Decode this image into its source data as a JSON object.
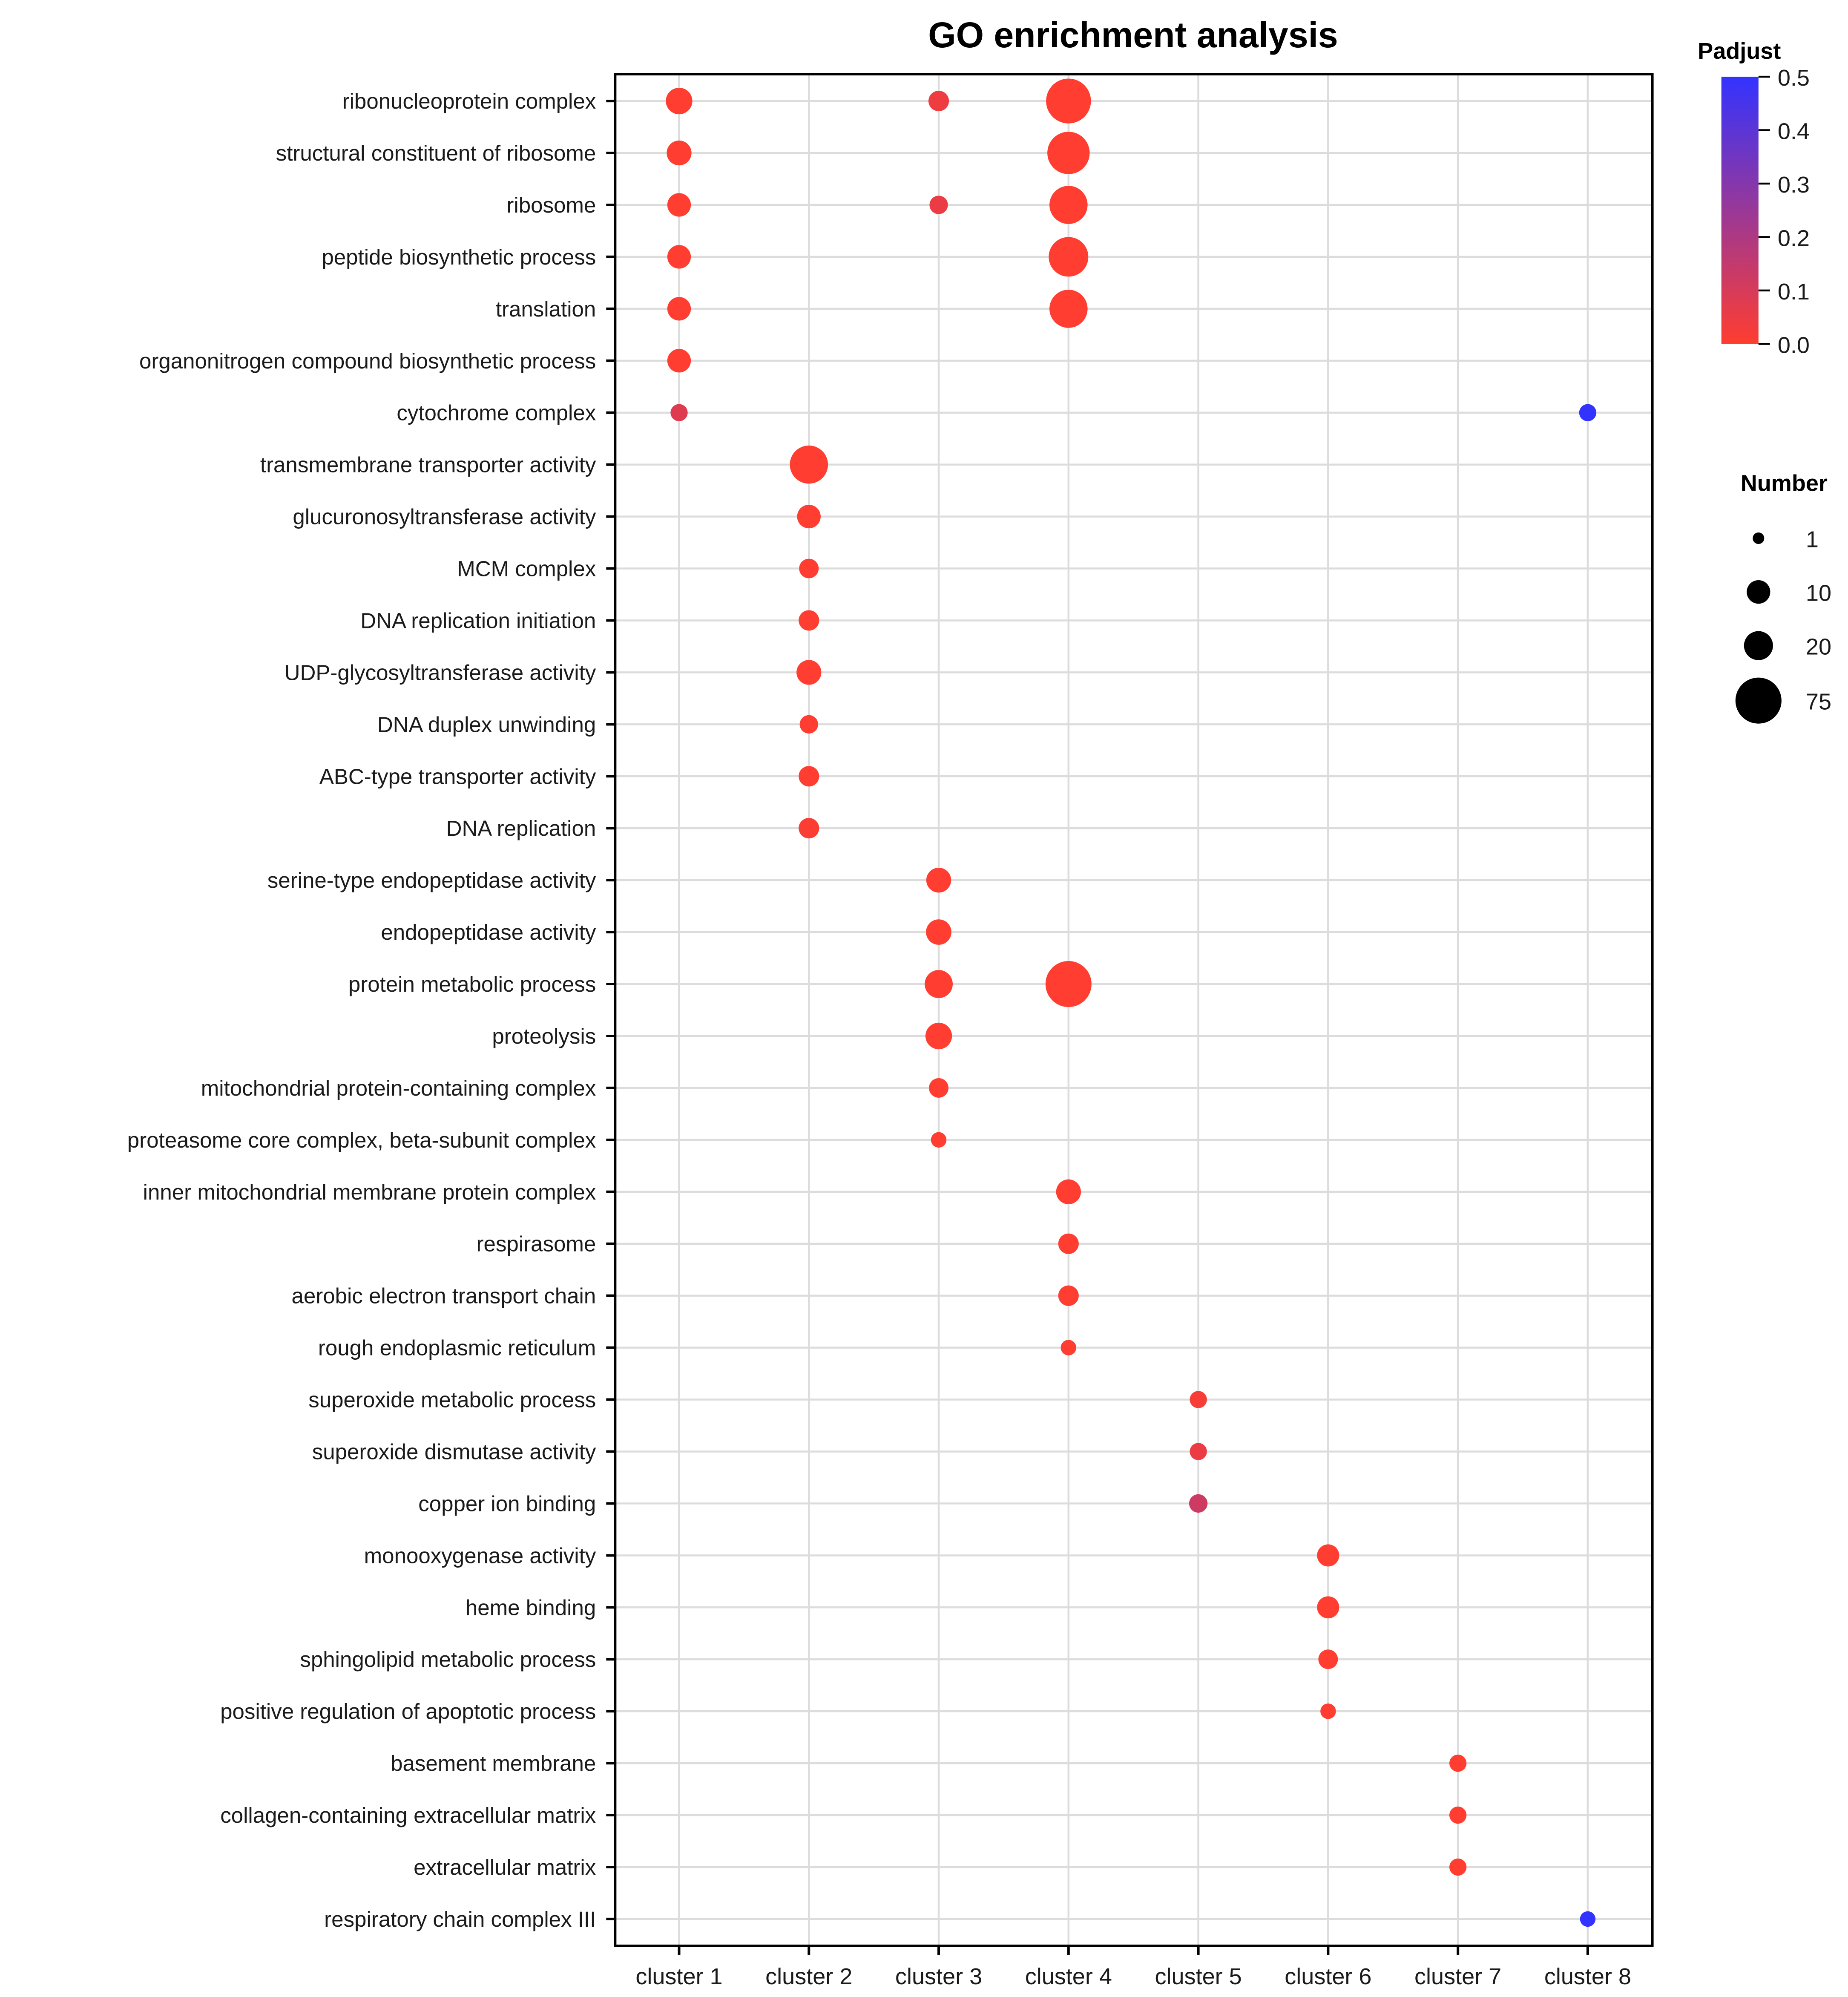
{
  "chart_data": {
    "type": "scatter",
    "title": "GO enrichment analysis",
    "xlabel": "",
    "ylabel": "",
    "grid": true,
    "categories_x": [
      "cluster 1",
      "cluster 2",
      "cluster 3",
      "cluster 4",
      "cluster 5",
      "cluster 6",
      "cluster 7",
      "cluster 8"
    ],
    "categories_y": [
      "ribonucleoprotein complex",
      "structural constituent of ribosome",
      "ribosome",
      "peptide biosynthetic process",
      "translation",
      "organonitrogen compound biosynthetic process",
      "cytochrome complex",
      "transmembrane transporter activity",
      "glucuronosyltransferase activity",
      "MCM complex",
      "DNA replication initiation",
      "UDP-glycosyltransferase activity",
      "DNA duplex unwinding",
      "ABC-type transporter activity",
      "DNA replication",
      "serine-type endopeptidase activity",
      "endopeptidase activity",
      "protein metabolic process",
      "proteolysis",
      "mitochondrial protein-containing complex",
      "proteasome core complex, beta-subunit complex",
      "inner mitochondrial membrane protein complex",
      "respirasome",
      "aerobic electron transport chain",
      "rough endoplasmic reticulum",
      "superoxide metabolic process",
      "superoxide dismutase activity",
      "copper ion binding",
      "monooxygenase activity",
      "heme binding",
      "sphingolipid metabolic process",
      "positive regulation of apoptotic process",
      "basement membrane",
      "collagen-containing extracellular matrix",
      "extracellular matrix",
      "respiratory chain complex III"
    ],
    "points": [
      {
        "term": "ribonucleoprotein complex",
        "cluster": "cluster 1",
        "number": 15,
        "padjust": 0.0
      },
      {
        "term": "ribonucleoprotein complex",
        "cluster": "cluster 3",
        "number": 6,
        "padjust": 0.04
      },
      {
        "term": "ribonucleoprotein complex",
        "cluster": "cluster 4",
        "number": 70,
        "padjust": 0.0
      },
      {
        "term": "structural constituent of ribosome",
        "cluster": "cluster 1",
        "number": 12,
        "padjust": 0.0
      },
      {
        "term": "structural constituent of ribosome",
        "cluster": "cluster 4",
        "number": 60,
        "padjust": 0.0
      },
      {
        "term": "ribosome",
        "cluster": "cluster 1",
        "number": 10,
        "padjust": 0.0
      },
      {
        "term": "ribosome",
        "cluster": "cluster 3",
        "number": 4,
        "padjust": 0.05
      },
      {
        "term": "ribosome",
        "cluster": "cluster 4",
        "number": 45,
        "padjust": 0.0
      },
      {
        "term": "peptide biosynthetic process",
        "cluster": "cluster 1",
        "number": 10,
        "padjust": 0.0
      },
      {
        "term": "peptide biosynthetic process",
        "cluster": "cluster 4",
        "number": 50,
        "padjust": 0.0
      },
      {
        "term": "translation",
        "cluster": "cluster 1",
        "number": 10,
        "padjust": 0.0
      },
      {
        "term": "translation",
        "cluster": "cluster 4",
        "number": 45,
        "padjust": 0.0
      },
      {
        "term": "organonitrogen compound biosynthetic process",
        "cluster": "cluster 1",
        "number": 10,
        "padjust": 0.0
      },
      {
        "term": "cytochrome complex",
        "cluster": "cluster 1",
        "number": 3,
        "padjust": 0.08
      },
      {
        "term": "cytochrome complex",
        "cluster": "cluster 8",
        "number": 3,
        "padjust": 0.5
      },
      {
        "term": "transmembrane transporter activity",
        "cluster": "cluster 2",
        "number": 45,
        "padjust": 0.0
      },
      {
        "term": "glucuronosyltransferase activity",
        "cluster": "cluster 2",
        "number": 10,
        "padjust": 0.0
      },
      {
        "term": "MCM complex",
        "cluster": "cluster 2",
        "number": 5,
        "padjust": 0.0
      },
      {
        "term": "DNA replication initiation",
        "cluster": "cluster 2",
        "number": 6,
        "padjust": 0.0
      },
      {
        "term": "UDP-glycosyltransferase activity",
        "cluster": "cluster 2",
        "number": 12,
        "padjust": 0.0
      },
      {
        "term": "DNA duplex unwinding",
        "cluster": "cluster 2",
        "number": 4,
        "padjust": 0.0
      },
      {
        "term": "ABC-type transporter activity",
        "cluster": "cluster 2",
        "number": 6,
        "padjust": 0.0
      },
      {
        "term": "DNA replication",
        "cluster": "cluster 2",
        "number": 6,
        "padjust": 0.01
      },
      {
        "term": "serine-type endopeptidase activity",
        "cluster": "cluster 3",
        "number": 12,
        "padjust": 0.0
      },
      {
        "term": "endopeptidase activity",
        "cluster": "cluster 3",
        "number": 13,
        "padjust": 0.0
      },
      {
        "term": "protein metabolic process",
        "cluster": "cluster 3",
        "number": 18,
        "padjust": 0.0
      },
      {
        "term": "protein metabolic process",
        "cluster": "cluster 4",
        "number": 75,
        "padjust": 0.0
      },
      {
        "term": "proteolysis",
        "cluster": "cluster 3",
        "number": 15,
        "padjust": 0.0
      },
      {
        "term": "mitochondrial protein-containing complex",
        "cluster": "cluster 3",
        "number": 5,
        "padjust": 0.0
      },
      {
        "term": "proteasome core complex, beta-subunit complex",
        "cluster": "cluster 3",
        "number": 2,
        "padjust": 0.0
      },
      {
        "term": "inner mitochondrial membrane protein complex",
        "cluster": "cluster 4",
        "number": 12,
        "padjust": 0.0
      },
      {
        "term": "respirasome",
        "cluster": "cluster 4",
        "number": 6,
        "padjust": 0.0
      },
      {
        "term": "aerobic electron transport chain",
        "cluster": "cluster 4",
        "number": 6,
        "padjust": 0.0
      },
      {
        "term": "rough endoplasmic reticulum",
        "cluster": "cluster 4",
        "number": 2,
        "padjust": 0.0
      },
      {
        "term": "superoxide metabolic process",
        "cluster": "cluster 5",
        "number": 3,
        "padjust": 0.02
      },
      {
        "term": "superoxide dismutase activity",
        "cluster": "cluster 5",
        "number": 3,
        "padjust": 0.05
      },
      {
        "term": "copper ion binding",
        "cluster": "cluster 5",
        "number": 4,
        "padjust": 0.12
      },
      {
        "term": "monooxygenase activity",
        "cluster": "cluster 6",
        "number": 8,
        "padjust": 0.0
      },
      {
        "term": "heme binding",
        "cluster": "cluster 6",
        "number": 8,
        "padjust": 0.0
      },
      {
        "term": "sphingolipid metabolic process",
        "cluster": "cluster 6",
        "number": 5,
        "padjust": 0.0
      },
      {
        "term": "positive regulation of apoptotic process",
        "cluster": "cluster 6",
        "number": 2,
        "padjust": 0.0
      },
      {
        "term": "basement membrane",
        "cluster": "cluster 7",
        "number": 3,
        "padjust": 0.0
      },
      {
        "term": "collagen-containing extracellular matrix",
        "cluster": "cluster 7",
        "number": 3,
        "padjust": 0.0
      },
      {
        "term": "extracellular matrix",
        "cluster": "cluster 7",
        "number": 3,
        "padjust": 0.0
      },
      {
        "term": "respiratory chain complex III",
        "cluster": "cluster 8",
        "number": 2,
        "padjust": 0.5
      }
    ],
    "color_legend": {
      "title": "Padjust",
      "min": 0.0,
      "max": 0.5,
      "ticks": [
        "0.0",
        "0.1",
        "0.2",
        "0.3",
        "0.4",
        "0.5"
      ],
      "low_color": "#ff3d30",
      "high_color": "#3333ff",
      "placement": "top-right"
    },
    "size_legend": {
      "title": "Number",
      "values": [
        1,
        10,
        20,
        75
      ],
      "labels": [
        "1",
        "10",
        "20",
        "75"
      ],
      "placement": "right"
    }
  }
}
